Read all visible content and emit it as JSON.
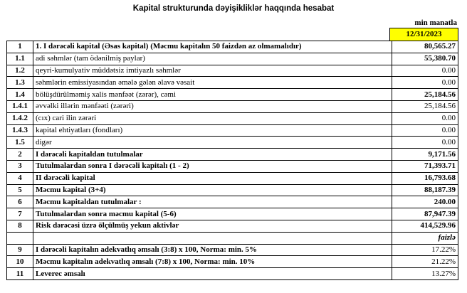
{
  "header": {
    "title": "Kapital strukturunda dəyişikliklər haqqında hesabat",
    "unit": "min manatla",
    "date": "12/31/2023"
  },
  "table": {
    "rows": [
      [
        "1",
        "1. I dərəcəli kapital (Əsas kapital) (Məcmu kapitalın 50 faizdən  az olmamalıdır)",
        "80,565.27"
      ],
      [
        "1.1",
        "adi səhmlər (tam ödənilmiş paylar)",
        "55,380.70"
      ],
      [
        "1.2",
        "qeyri-kumulyativ müddətsiz imtiyazlı səhmlər",
        "0.00"
      ],
      [
        "1.3",
        "səhmlərin emissiyasından əmələ gələn  əlavə vəsait",
        "0.00"
      ],
      [
        "1.4",
        "bölüşdürülməmiş xalis mənfəət (zərər), cəmi",
        "25,184.56"
      ],
      [
        "1.4.1",
        "əvvəlki illərin mənfəəti (zərəri)",
        "25,184.56"
      ],
      [
        "1.4.2",
        "(cıx) cari ilin zərəri",
        "0.00"
      ],
      [
        "1.4.3",
        "kapital ehtiyatları (fondları)",
        "0.00"
      ],
      [
        "1.5",
        "digər",
        "0.00"
      ],
      [
        "2",
        "I dərəcəli kapitaldan  tutulmalar",
        "9,171.56"
      ],
      [
        "3",
        "Tutulmalardan  sonra I dərəcəli kapitalı (1 - 2)",
        "71,393.71"
      ],
      [
        "4",
        "II dərəcəli  kapital",
        "16,793.68"
      ],
      [
        "5",
        "Məcmu kapital (3+4)",
        "88,187.39"
      ],
      [
        "6",
        "Məcmu kapitaldan tutulmalar :",
        "240.00"
      ],
      [
        "7",
        "Tutulmalardan sonra məcmu kapital (5-6)",
        "87,947.39"
      ],
      [
        "8",
        "Risk dərəcəsi üzrə ölçülmüş  yekun aktivlər",
        "414,529.96"
      ]
    ],
    "percent_header": "faizlə",
    "percent_rows": [
      [
        "9",
        "I dərəcəli  kapitalın  adekvatlıq əmsalı (3:8) x 100, Norma: min. 5%",
        "17.22%"
      ],
      [
        "10",
        "Məcmu kapitalın  adekvatlıq  əmsalı (7:8) x 100, Norma: min. 10%",
        "21.22%"
      ],
      [
        "11",
        "Leverec əmsalı",
        "13.27%"
      ]
    ]
  }
}
